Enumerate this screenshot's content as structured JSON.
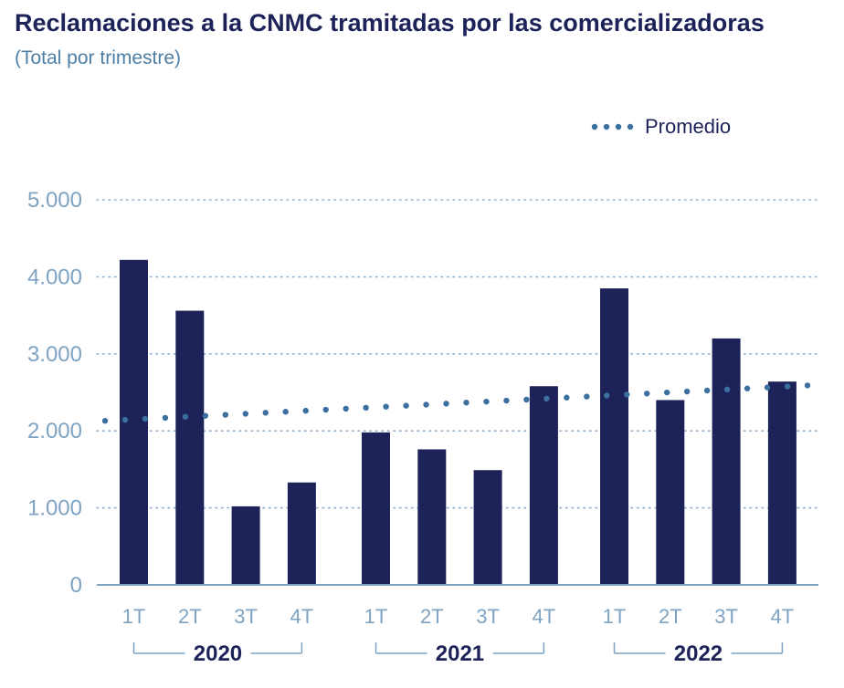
{
  "chart_data": {
    "type": "bar",
    "title": "Reclamaciones a la CNMC tramitadas por las comercializadoras",
    "subtitle": "(Total por trimestre)",
    "ylim": [
      0,
      5000
    ],
    "yticks": [
      0,
      1000,
      2000,
      3000,
      4000,
      5000
    ],
    "ytick_labels": [
      "0",
      "1.000",
      "2.000",
      "3.000",
      "4.000",
      "5.000"
    ],
    "groups": [
      {
        "year": "2020",
        "categories": [
          "1T",
          "2T",
          "3T",
          "4T"
        ],
        "values": [
          4220,
          3560,
          1020,
          1330
        ]
      },
      {
        "year": "2021",
        "categories": [
          "1T",
          "2T",
          "3T",
          "4T"
        ],
        "values": [
          1980,
          1760,
          1490,
          2580
        ]
      },
      {
        "year": "2022",
        "categories": [
          "1T",
          "2T",
          "3T",
          "4T"
        ],
        "values": [
          3850,
          2400,
          3200,
          2640
        ]
      }
    ],
    "trend": {
      "name": "Promedio",
      "start": 2130,
      "end": 2590
    },
    "legend": {
      "label": "Promedio",
      "position": "top-right"
    },
    "colors": {
      "bar": "#1d2359",
      "trend": "#3b6fa0",
      "grid": "#8fb0cc",
      "axis": "#7fa3c2"
    }
  }
}
